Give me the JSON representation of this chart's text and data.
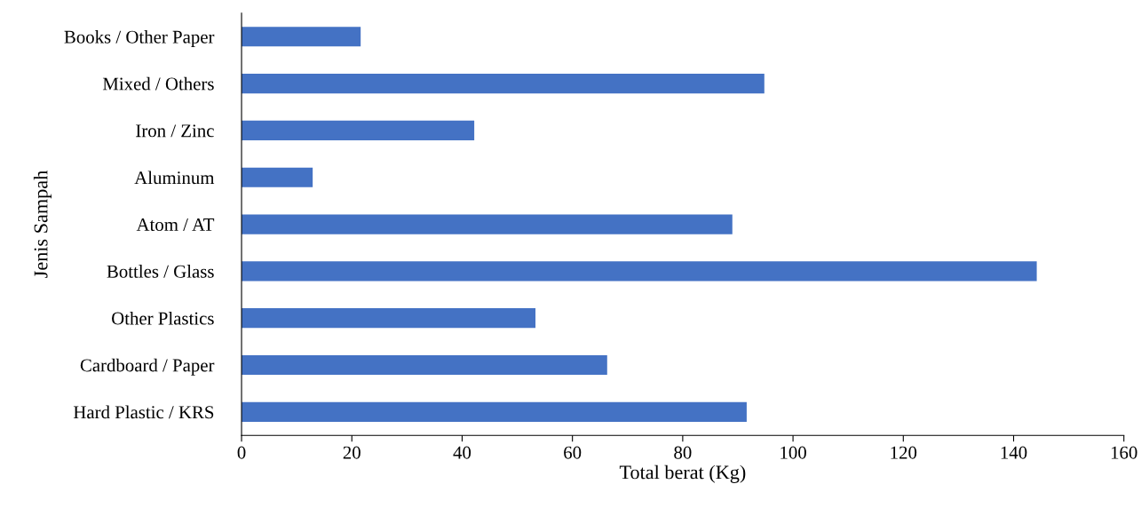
{
  "chart_data": {
    "type": "bar",
    "orientation": "horizontal",
    "xlabel": "Total berat (Kg)",
    "ylabel": "Jenis Sampah",
    "categories": [
      "Books / Other Paper",
      "Mixed / Others",
      "Iron / Zinc",
      "Aluminum",
      "Atom / AT",
      "Bottles / Glass",
      "Other Plastics",
      "Cardboard / Paper",
      "Hard Plastic / KRS"
    ],
    "values": [
      21.6,
      94.8,
      42.2,
      12.9,
      89.0,
      144.2,
      53.3,
      66.3,
      91.6
    ],
    "color": "#4472c4",
    "xlim": [
      0,
      160
    ],
    "xticks": [
      0,
      20,
      40,
      60,
      80,
      100,
      120,
      140,
      160
    ],
    "grid": false,
    "legend": false
  }
}
